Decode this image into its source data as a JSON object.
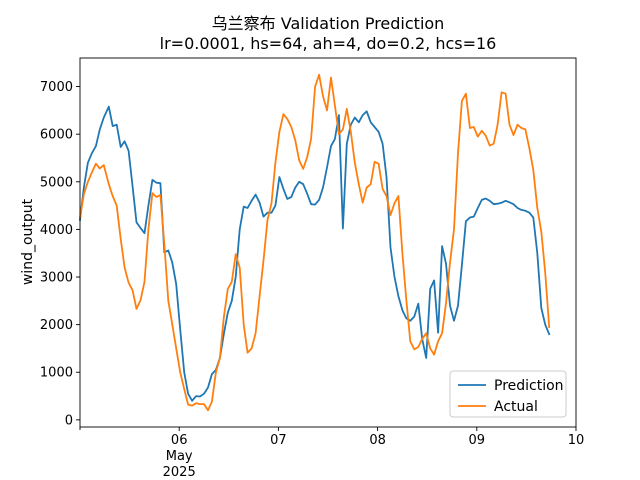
{
  "chart_data": {
    "type": "line",
    "title": "乌兰察布 Validation Prediction",
    "subtitle": "lr=0.0001, hs=64, ah=4, do=0.2, hcs=16",
    "xlabel": "",
    "ylabel": "wind_output",
    "xlim": [
      0,
      5
    ],
    "ylim": [
      -150,
      7600
    ],
    "x_ticks": [
      {
        "x": 1,
        "label": "06",
        "sub1": "May",
        "sub2": "2025"
      },
      {
        "x": 2,
        "label": "07",
        "sub1": "",
        "sub2": ""
      },
      {
        "x": 3,
        "label": "08",
        "sub1": "",
        "sub2": ""
      },
      {
        "x": 4,
        "label": "09",
        "sub1": "",
        "sub2": ""
      },
      {
        "x": 5,
        "label": "10",
        "sub1": "",
        "sub2": ""
      }
    ],
    "y_ticks": [
      0,
      1000,
      2000,
      3000,
      4000,
      5000,
      6000,
      7000
    ],
    "legend_position": "lower-right",
    "series": [
      {
        "name": "Prediction",
        "color": "#1f77b4",
        "points": [
          [
            0.0,
            4200
          ],
          [
            0.04,
            4900
          ],
          [
            0.08,
            5400
          ],
          [
            0.12,
            5600
          ],
          [
            0.16,
            5750
          ],
          [
            0.2,
            6100
          ],
          [
            0.24,
            6350
          ],
          [
            0.29,
            6580
          ],
          [
            0.33,
            6170
          ],
          [
            0.37,
            6200
          ],
          [
            0.41,
            5730
          ],
          [
            0.45,
            5850
          ],
          [
            0.49,
            5650
          ],
          [
            0.53,
            4900
          ],
          [
            0.57,
            4150
          ],
          [
            0.61,
            4030
          ],
          [
            0.65,
            3920
          ],
          [
            0.69,
            4500
          ],
          [
            0.73,
            5040
          ],
          [
            0.77,
            4980
          ],
          [
            0.81,
            4970
          ],
          [
            0.85,
            3520
          ],
          [
            0.89,
            3560
          ],
          [
            0.93,
            3300
          ],
          [
            0.97,
            2850
          ],
          [
            1.01,
            1900
          ],
          [
            1.05,
            1000
          ],
          [
            1.09,
            550
          ],
          [
            1.13,
            400
          ],
          [
            1.17,
            500
          ],
          [
            1.21,
            490
          ],
          [
            1.25,
            550
          ],
          [
            1.29,
            680
          ],
          [
            1.33,
            960
          ],
          [
            1.37,
            1050
          ],
          [
            1.41,
            1300
          ],
          [
            1.45,
            1800
          ],
          [
            1.49,
            2250
          ],
          [
            1.53,
            2500
          ],
          [
            1.57,
            3000
          ],
          [
            1.61,
            4000
          ],
          [
            1.65,
            4480
          ],
          [
            1.69,
            4450
          ],
          [
            1.73,
            4600
          ],
          [
            1.77,
            4730
          ],
          [
            1.81,
            4560
          ],
          [
            1.85,
            4270
          ],
          [
            1.89,
            4350
          ],
          [
            1.93,
            4350
          ],
          [
            1.97,
            4500
          ],
          [
            2.01,
            5100
          ],
          [
            2.05,
            4850
          ],
          [
            2.09,
            4640
          ],
          [
            2.13,
            4680
          ],
          [
            2.17,
            4880
          ],
          [
            2.21,
            5000
          ],
          [
            2.25,
            4950
          ],
          [
            2.29,
            4750
          ],
          [
            2.33,
            4530
          ],
          [
            2.37,
            4520
          ],
          [
            2.41,
            4620
          ],
          [
            2.45,
            4880
          ],
          [
            2.49,
            5300
          ],
          [
            2.53,
            5750
          ],
          [
            2.57,
            5900
          ],
          [
            2.61,
            6400
          ],
          [
            2.65,
            4020
          ],
          [
            2.69,
            5800
          ],
          [
            2.73,
            6200
          ],
          [
            2.77,
            6350
          ],
          [
            2.81,
            6250
          ],
          [
            2.85,
            6400
          ],
          [
            2.89,
            6480
          ],
          [
            2.93,
            6250
          ],
          [
            2.97,
            6150
          ],
          [
            3.01,
            6050
          ],
          [
            3.05,
            5800
          ],
          [
            3.09,
            5100
          ],
          [
            3.13,
            3620
          ],
          [
            3.17,
            3000
          ],
          [
            3.21,
            2600
          ],
          [
            3.25,
            2300
          ],
          [
            3.29,
            2130
          ],
          [
            3.33,
            2080
          ],
          [
            3.37,
            2170
          ],
          [
            3.41,
            2440
          ],
          [
            3.45,
            1700
          ],
          [
            3.49,
            1300
          ],
          [
            3.53,
            2750
          ],
          [
            3.57,
            2930
          ],
          [
            3.61,
            1830
          ],
          [
            3.65,
            3650
          ],
          [
            3.69,
            3280
          ],
          [
            3.73,
            2400
          ],
          [
            3.77,
            2080
          ],
          [
            3.81,
            2400
          ],
          [
            3.85,
            3250
          ],
          [
            3.89,
            4170
          ],
          [
            3.93,
            4250
          ],
          [
            3.97,
            4270
          ],
          [
            4.01,
            4450
          ],
          [
            4.05,
            4620
          ],
          [
            4.09,
            4650
          ],
          [
            4.13,
            4600
          ],
          [
            4.17,
            4530
          ],
          [
            4.21,
            4540
          ],
          [
            4.25,
            4560
          ],
          [
            4.29,
            4600
          ],
          [
            4.33,
            4570
          ],
          [
            4.37,
            4530
          ],
          [
            4.41,
            4450
          ],
          [
            4.45,
            4410
          ],
          [
            4.49,
            4390
          ],
          [
            4.53,
            4350
          ],
          [
            4.57,
            4250
          ],
          [
            4.61,
            3500
          ],
          [
            4.65,
            2350
          ],
          [
            4.69,
            2000
          ],
          [
            4.73,
            1800
          ]
        ]
      },
      {
        "name": "Actual",
        "color": "#ff7f0e",
        "points": [
          [
            0.0,
            4250
          ],
          [
            0.04,
            4750
          ],
          [
            0.08,
            5000
          ],
          [
            0.12,
            5200
          ],
          [
            0.16,
            5380
          ],
          [
            0.2,
            5280
          ],
          [
            0.24,
            5350
          ],
          [
            0.29,
            4950
          ],
          [
            0.33,
            4700
          ],
          [
            0.37,
            4500
          ],
          [
            0.41,
            3800
          ],
          [
            0.45,
            3200
          ],
          [
            0.49,
            2880
          ],
          [
            0.53,
            2720
          ],
          [
            0.57,
            2330
          ],
          [
            0.61,
            2510
          ],
          [
            0.65,
            2900
          ],
          [
            0.69,
            4000
          ],
          [
            0.73,
            4760
          ],
          [
            0.77,
            4680
          ],
          [
            0.81,
            4720
          ],
          [
            0.85,
            3700
          ],
          [
            0.89,
            2500
          ],
          [
            0.93,
            2000
          ],
          [
            0.97,
            1500
          ],
          [
            1.01,
            1000
          ],
          [
            1.05,
            650
          ],
          [
            1.09,
            320
          ],
          [
            1.13,
            300
          ],
          [
            1.17,
            350
          ],
          [
            1.21,
            330
          ],
          [
            1.25,
            330
          ],
          [
            1.29,
            200
          ],
          [
            1.33,
            380
          ],
          [
            1.37,
            1000
          ],
          [
            1.41,
            1300
          ],
          [
            1.45,
            2150
          ],
          [
            1.49,
            2750
          ],
          [
            1.53,
            2900
          ],
          [
            1.57,
            3480
          ],
          [
            1.61,
            3200
          ],
          [
            1.65,
            2000
          ],
          [
            1.69,
            1410
          ],
          [
            1.73,
            1500
          ],
          [
            1.77,
            1820
          ],
          [
            1.81,
            2600
          ],
          [
            1.85,
            3350
          ],
          [
            1.89,
            4200
          ],
          [
            1.93,
            4550
          ],
          [
            1.97,
            5400
          ],
          [
            2.01,
            6050
          ],
          [
            2.05,
            6420
          ],
          [
            2.09,
            6320
          ],
          [
            2.13,
            6150
          ],
          [
            2.17,
            5870
          ],
          [
            2.21,
            5450
          ],
          [
            2.25,
            5270
          ],
          [
            2.29,
            5520
          ],
          [
            2.33,
            5900
          ],
          [
            2.37,
            7000
          ],
          [
            2.41,
            7250
          ],
          [
            2.45,
            6800
          ],
          [
            2.49,
            6500
          ],
          [
            2.53,
            7190
          ],
          [
            2.57,
            6600
          ],
          [
            2.61,
            6000
          ],
          [
            2.65,
            6100
          ],
          [
            2.69,
            6530
          ],
          [
            2.73,
            6050
          ],
          [
            2.77,
            5400
          ],
          [
            2.81,
            4950
          ],
          [
            2.85,
            4560
          ],
          [
            2.89,
            4880
          ],
          [
            2.93,
            4950
          ],
          [
            2.97,
            5420
          ],
          [
            3.01,
            5380
          ],
          [
            3.05,
            4850
          ],
          [
            3.09,
            4700
          ],
          [
            3.13,
            4300
          ],
          [
            3.17,
            4550
          ],
          [
            3.21,
            4700
          ],
          [
            3.25,
            3500
          ],
          [
            3.29,
            2500
          ],
          [
            3.33,
            1650
          ],
          [
            3.37,
            1480
          ],
          [
            3.41,
            1530
          ],
          [
            3.45,
            1700
          ],
          [
            3.49,
            1820
          ],
          [
            3.53,
            1500
          ],
          [
            3.57,
            1370
          ],
          [
            3.61,
            1650
          ],
          [
            3.65,
            1820
          ],
          [
            3.69,
            2450
          ],
          [
            3.73,
            3300
          ],
          [
            3.77,
            4000
          ],
          [
            3.81,
            5600
          ],
          [
            3.85,
            6700
          ],
          [
            3.89,
            6850
          ],
          [
            3.93,
            6130
          ],
          [
            3.97,
            6150
          ],
          [
            4.01,
            5950
          ],
          [
            4.05,
            6070
          ],
          [
            4.09,
            5970
          ],
          [
            4.13,
            5760
          ],
          [
            4.17,
            5800
          ],
          [
            4.21,
            6200
          ],
          [
            4.25,
            6880
          ],
          [
            4.29,
            6850
          ],
          [
            4.33,
            6200
          ],
          [
            4.37,
            5980
          ],
          [
            4.41,
            6200
          ],
          [
            4.45,
            6130
          ],
          [
            4.49,
            6100
          ],
          [
            4.53,
            5700
          ],
          [
            4.57,
            5250
          ],
          [
            4.61,
            4450
          ],
          [
            4.65,
            3950
          ],
          [
            4.69,
            3100
          ],
          [
            4.73,
            1950
          ]
        ]
      }
    ]
  }
}
